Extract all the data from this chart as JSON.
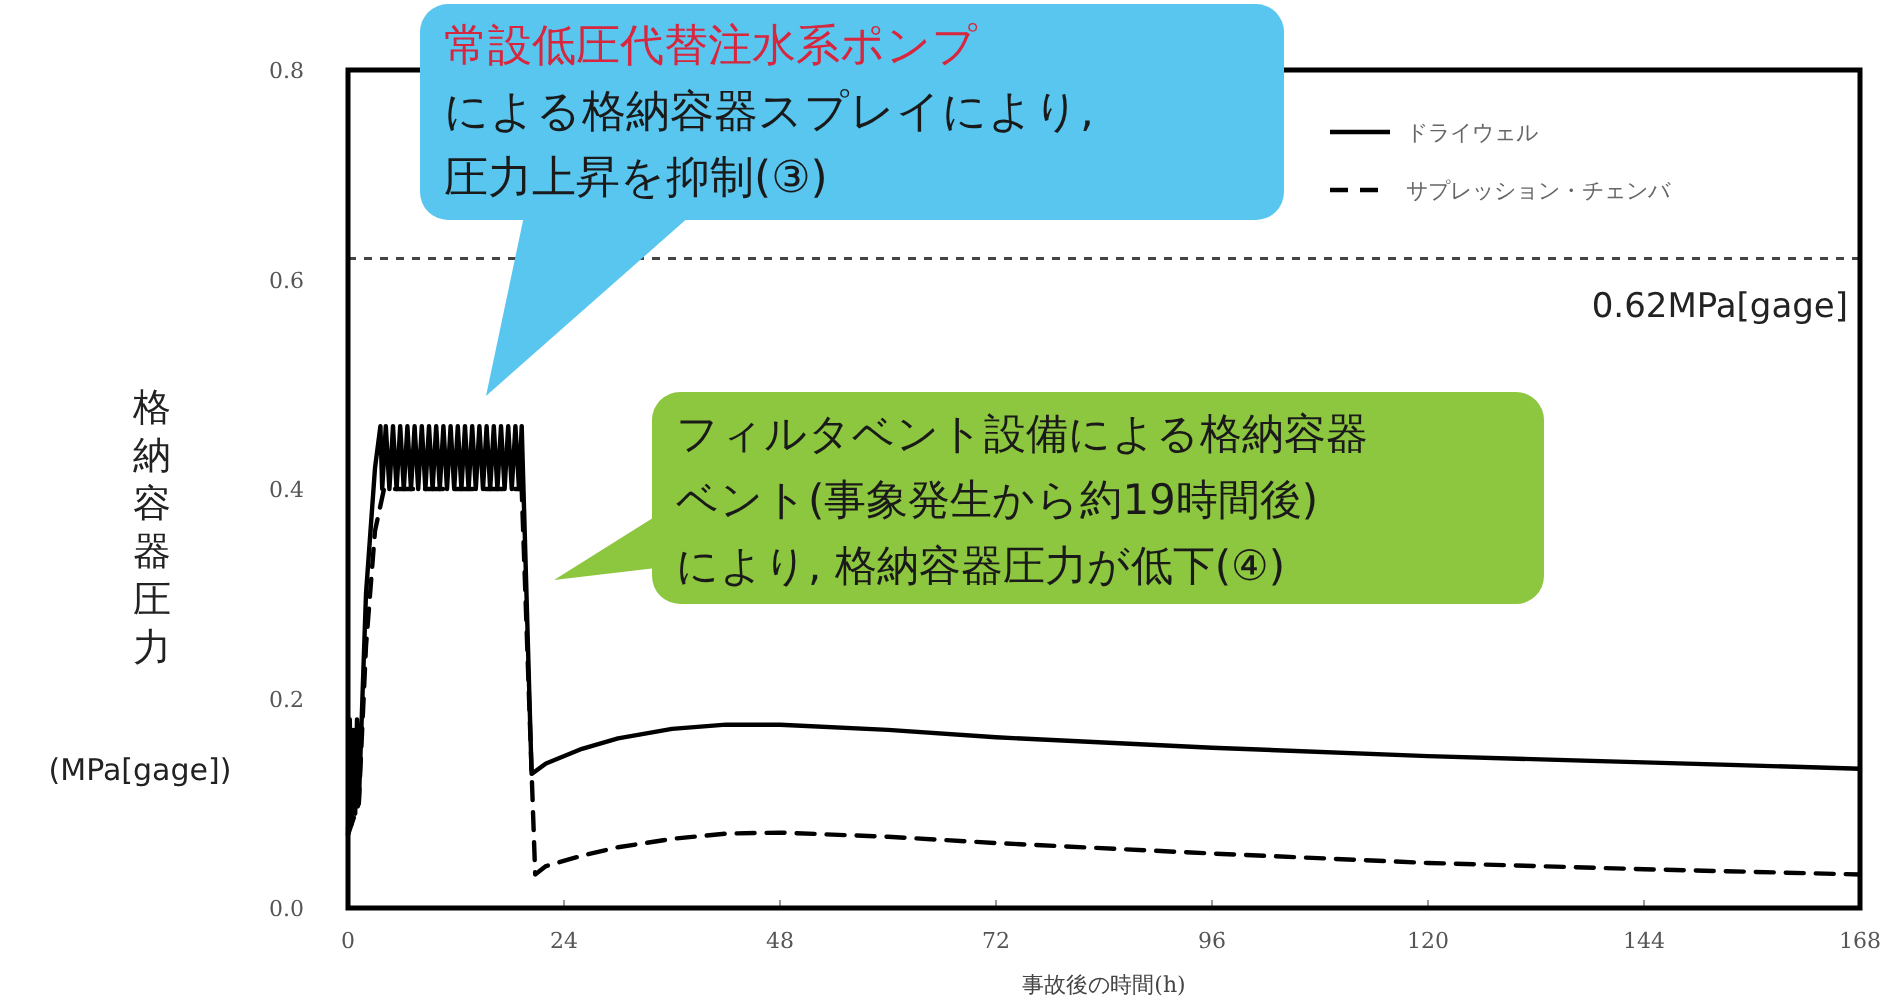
{
  "chart_data": {
    "type": "line",
    "xlabel": "事故後の時間(h)",
    "ylabel": "格納容器圧力\n(MPa[gage])",
    "xlim": [
      0,
      168
    ],
    "xticks": [
      0,
      24,
      48,
      72,
      96,
      120,
      144,
      168
    ],
    "ylim": [
      0,
      0.8
    ],
    "yticks": [
      {
        "value": 0,
        "label": "0.0"
      },
      0.2,
      0.4,
      0.6,
      0.8
    ],
    "grid": false,
    "legend": "top right",
    "series": [
      {
        "name": "ドライウェル",
        "color": "#000000",
        "line_style": "solid",
        "x": [
          0,
          0.2,
          0.4,
          0.6,
          0.8,
          1.0,
          1.2,
          2.0,
          3.0,
          3.6,
          3.8,
          4.2,
          4.6,
          5.0,
          5.4,
          5.8,
          6.2,
          6.6,
          7.0,
          7.4,
          7.8,
          8.2,
          8.6,
          9.0,
          9.4,
          9.8,
          10.2,
          10.6,
          11.0,
          11.4,
          11.8,
          12.2,
          12.6,
          13.0,
          13.4,
          13.8,
          14.2,
          14.6,
          15.0,
          15.4,
          15.8,
          16.2,
          16.6,
          17.0,
          17.4,
          17.8,
          18.2,
          18.6,
          19.0,
          19.3,
          20.4,
          22,
          26,
          30,
          36,
          42,
          48,
          60,
          72,
          96,
          120,
          144,
          168
        ],
        "values": [
          0.07,
          0.18,
          0.08,
          0.17,
          0.09,
          0.18,
          0.1,
          0.3,
          0.42,
          0.46,
          0.4,
          0.46,
          0.4,
          0.46,
          0.4,
          0.46,
          0.4,
          0.46,
          0.4,
          0.46,
          0.4,
          0.46,
          0.4,
          0.46,
          0.4,
          0.46,
          0.4,
          0.46,
          0.4,
          0.46,
          0.4,
          0.46,
          0.4,
          0.46,
          0.4,
          0.46,
          0.4,
          0.46,
          0.4,
          0.46,
          0.4,
          0.46,
          0.4,
          0.46,
          0.4,
          0.46,
          0.4,
          0.46,
          0.4,
          0.46,
          0.128,
          0.138,
          0.152,
          0.162,
          0.171,
          0.175,
          0.175,
          0.17,
          0.163,
          0.153,
          0.145,
          0.139,
          0.133
        ]
      },
      {
        "name": "サプレッション・チェンバ",
        "color": "#000000",
        "line_style": "dashed",
        "x": [
          0,
          1.2,
          2,
          3,
          4,
          19.3,
          20.8,
          22,
          26,
          30,
          36,
          42,
          48,
          60,
          72,
          96,
          120,
          144,
          168
        ],
        "values": [
          0.07,
          0.1,
          0.25,
          0.36,
          0.4,
          0.4,
          0.032,
          0.04,
          0.05,
          0.058,
          0.066,
          0.071,
          0.072,
          0.068,
          0.062,
          0.052,
          0.043,
          0.037,
          0.032
        ]
      }
    ],
    "ref_lines": [
      {
        "axis": "y",
        "value": 0.62,
        "label": "0.62MPa[gage]",
        "color": "#444444",
        "line_style": "dashed"
      }
    ],
    "annotations": [
      "常設低圧代替注水系ポンプ",
      "による格納容器スプレイにより,",
      "圧力上昇を抑制(③)",
      "フィルタベント設備による格納容器",
      "ベント(事象発生から約19時間後)",
      "により, 格納容器圧力が低下(④)"
    ]
  }
}
